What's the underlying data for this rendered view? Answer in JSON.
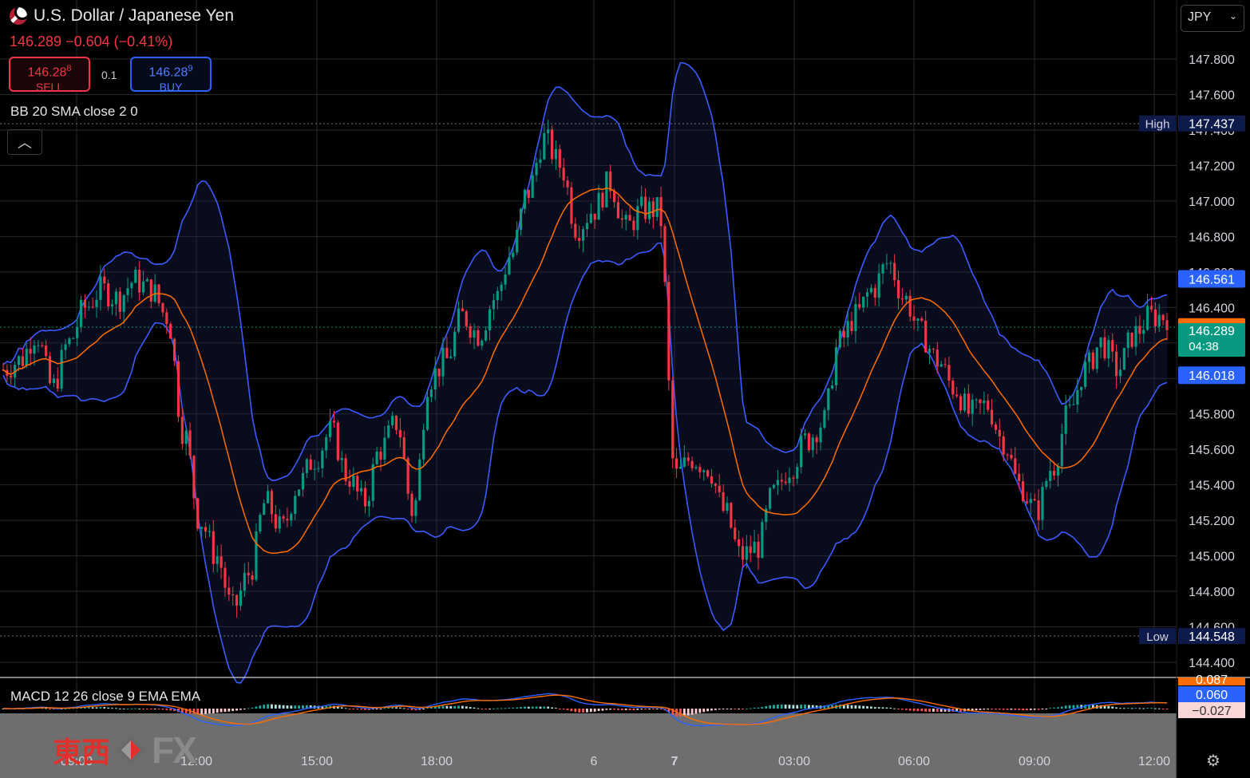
{
  "header": {
    "title": "U.S. Dollar / Japanese Yen",
    "last": "146.289",
    "change": "−0.604",
    "change_pct": "(−0.41%)"
  },
  "trade": {
    "sell_price": "146.28",
    "sell_sup": "8",
    "sell_label": "SELL",
    "qty": "0.1",
    "buy_price": "146.28",
    "buy_sup": "9",
    "buy_label": "BUY"
  },
  "indicators": {
    "bb": "BB 20 SMA close 2 0",
    "macd": "MACD 12 26 close 9 EMA EMA"
  },
  "currency": "JPY",
  "logo": {
    "cn": "東西",
    "fx": "FX"
  },
  "colors": {
    "up": "#089981",
    "down": "#f23645",
    "bb_band": "#3d5afe",
    "bb_basis": "#ff6d00",
    "macd": "#2962ff",
    "signal": "#ff6d00",
    "grid": "#2a2a2a"
  },
  "chart_data": {
    "type": "candlestick",
    "y_ticks": [
      "147.800",
      "147.600",
      "147.400",
      "147.200",
      "147.000",
      "146.800",
      "146.600",
      "146.400",
      "146.200",
      "146.000",
      "145.800",
      "145.600",
      "145.400",
      "145.200",
      "145.000",
      "144.800",
      "144.600",
      "144.400"
    ],
    "x_ticks": [
      "09:00",
      "12:00",
      "15:00",
      "18:00",
      "6",
      "7",
      "03:00",
      "06:00",
      "09:00",
      "12:00"
    ],
    "ylim": [
      144.35,
      147.95
    ],
    "price_labels": [
      {
        "label": "High",
        "value": "147.437",
        "price": 147.437,
        "color": "#0d1a4a",
        "style": "high"
      },
      {
        "label": "",
        "value": "146.561",
        "price": 146.561,
        "color": "#2962ff",
        "style": "band"
      },
      {
        "label": "",
        "value": "146.290",
        "price": 146.29,
        "color": "#ff6d00",
        "style": "band"
      },
      {
        "label": "",
        "value": "146.289",
        "sub": "04:38",
        "price": 146.244,
        "color": "#089981",
        "style": "last"
      },
      {
        "label": "",
        "value": "146.018",
        "price": 146.018,
        "color": "#2962ff",
        "style": "band"
      },
      {
        "label": "Low",
        "value": "144.548",
        "price": 144.548,
        "color": "#0d1a4a",
        "style": "high"
      }
    ],
    "macd_labels": [
      {
        "value": "0.087",
        "color": "#ff6d00"
      },
      {
        "value": "0.060",
        "color": "#2962ff"
      },
      {
        "value": "−0.027",
        "color": "#fbd6d6"
      }
    ],
    "close_path": [
      146.05,
      146.1,
      146.25,
      145.95,
      146.2,
      146.4,
      146.5,
      146.45,
      146.55,
      146.5,
      146.35,
      145.7,
      145.2,
      145.0,
      144.7,
      144.9,
      145.3,
      145.15,
      145.4,
      145.55,
      145.7,
      145.45,
      145.3,
      145.6,
      145.75,
      145.25,
      146.0,
      146.1,
      146.35,
      146.25,
      146.45,
      146.7,
      147.05,
      147.35,
      147.2,
      146.85,
      146.95,
      147.1,
      146.85,
      146.95,
      146.95,
      145.45,
      145.55,
      145.5,
      145.25,
      145.0,
      145.05,
      145.35,
      145.5,
      145.65,
      145.75,
      146.2,
      146.35,
      146.5,
      146.65,
      146.45,
      146.25,
      146.1,
      145.95,
      145.8,
      145.85,
      145.65,
      145.4,
      145.25,
      145.5,
      145.8,
      146.05,
      146.2,
      146.05,
      146.25,
      146.35,
      146.35
    ]
  }
}
